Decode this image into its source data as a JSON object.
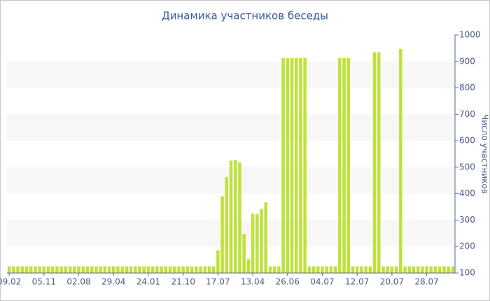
{
  "chart_data": {
    "type": "bar",
    "title": "Динамика участников беседы",
    "y_label": "Число участников",
    "categories": [
      "09.02",
      null,
      null,
      null,
      null,
      null,
      null,
      null,
      "05.11",
      null,
      null,
      null,
      null,
      null,
      null,
      null,
      "02.08",
      null,
      null,
      null,
      null,
      null,
      null,
      null,
      "29.04",
      null,
      null,
      null,
      null,
      null,
      null,
      null,
      "24.01",
      null,
      null,
      null,
      null,
      null,
      null,
      null,
      "21.10",
      null,
      null,
      null,
      null,
      null,
      null,
      null,
      "17.07",
      null,
      null,
      null,
      null,
      null,
      null,
      null,
      "13.04",
      null,
      null,
      null,
      null,
      null,
      null,
      null,
      "26.06",
      null,
      null,
      null,
      null,
      null,
      null,
      null,
      "04.07",
      null,
      null,
      null,
      null,
      null,
      null,
      null,
      "12.07",
      null,
      null,
      null,
      null,
      null,
      null,
      null,
      "20.07",
      null,
      null,
      null,
      null,
      null,
      null,
      null,
      "28.07",
      null,
      null,
      null,
      null,
      null,
      null
    ],
    "values": [
      125,
      125,
      125,
      125,
      125,
      125,
      125,
      125,
      125,
      125,
      125,
      125,
      125,
      125,
      125,
      125,
      125,
      125,
      125,
      125,
      125,
      125,
      125,
      125,
      125,
      125,
      125,
      125,
      125,
      125,
      125,
      125,
      125,
      125,
      125,
      125,
      125,
      125,
      125,
      125,
      125,
      125,
      125,
      125,
      125,
      125,
      125,
      125,
      186,
      390,
      463,
      525,
      527,
      518,
      247,
      152,
      325,
      323,
      342,
      367,
      125,
      125,
      125,
      913,
      913,
      913,
      913,
      913,
      913,
      125,
      125,
      125,
      125,
      125,
      125,
      125,
      913,
      913,
      913,
      125,
      125,
      125,
      125,
      125,
      935,
      935,
      125,
      125,
      125,
      125,
      947,
      125,
      125,
      125,
      125,
      125,
      125,
      125,
      125,
      125,
      125,
      125,
      125
    ],
    "color": "#bde23a",
    "ylim": [
      100,
      1000
    ],
    "yticks": [
      100,
      200,
      300,
      400,
      500,
      600,
      700,
      800,
      900,
      1000
    ],
    "y_axis_side": "right",
    "grid_bands": true
  }
}
